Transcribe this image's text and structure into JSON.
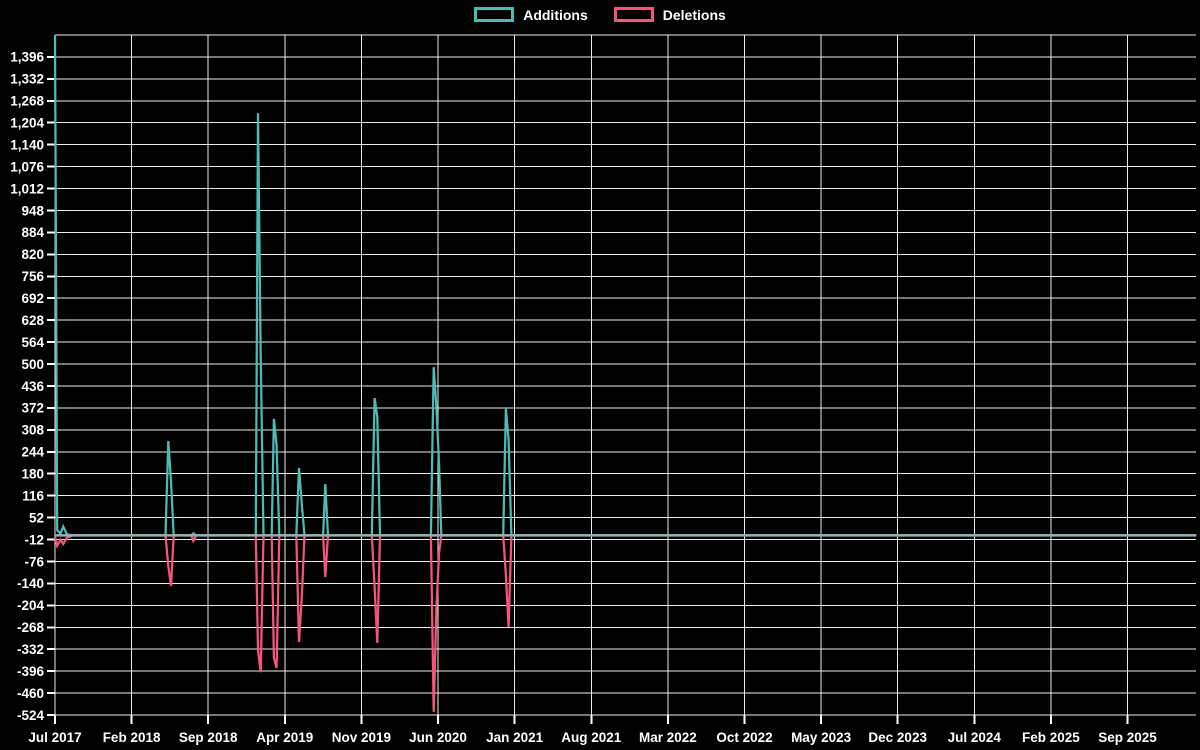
{
  "legend": {
    "position": "top-center",
    "items": [
      {
        "label": "Additions",
        "color": "#4dbbb1"
      },
      {
        "label": "Deletions",
        "color": "#f8537c"
      }
    ]
  },
  "colors": {
    "background": "#000000",
    "gridline": "#ffffff",
    "tick_text": "#ffffff",
    "additions": "#4dbbb1",
    "deletions": "#f8537c",
    "zero_baseline_overlap": "#8fb3b5"
  },
  "chart_data": {
    "type": "line",
    "title": "",
    "xlabel": "",
    "ylabel": "",
    "grid": true,
    "legend_position": "top",
    "x_unit": "months since Jul 2017",
    "x_domain": [
      0,
      104.3
    ],
    "x_tick_month_step": 7,
    "x_tick_labels": [
      "Jul 2017",
      "Feb 2018",
      "Sep 2018",
      "Apr 2019",
      "Nov 2019",
      "Jun 2020",
      "Jan 2021",
      "Aug 2021",
      "Mar 2022",
      "Oct 2022",
      "May 2023",
      "Dec 2023",
      "Jul 2024",
      "Feb 2025",
      "Sep 2025"
    ],
    "y_axis": {
      "min": -524,
      "max_labeled": 1396,
      "max_gridline_unlabeled": 1460,
      "step": 64,
      "tick_labels": [
        "1,396",
        "1,332",
        "1,268",
        "1,204",
        "1,140",
        "1,076",
        "1,012",
        "948",
        "884",
        "820",
        "756",
        "692",
        "628",
        "564",
        "500",
        "436",
        "372",
        "308",
        "244",
        "180",
        "116",
        "52",
        "-12",
        "-76",
        "-140",
        "-204",
        "-268",
        "-332",
        "-396",
        "-460",
        "-524"
      ]
    },
    "clipped_note_value": 1460,
    "series": [
      {
        "name": "Additions",
        "color": "#4dbbb1",
        "points": [
          [
            0,
            1460
          ],
          [
            0.2,
            15
          ],
          [
            0.5,
            5
          ],
          [
            0.75,
            26
          ],
          [
            1.1,
            3
          ],
          [
            1.6,
            0
          ],
          [
            10.1,
            0
          ],
          [
            10.35,
            275
          ],
          [
            10.6,
            159
          ],
          [
            10.85,
            0
          ],
          [
            12.45,
            0
          ],
          [
            12.65,
            6
          ],
          [
            12.9,
            0
          ],
          [
            18.35,
            0
          ],
          [
            18.55,
            1232
          ],
          [
            18.8,
            526
          ],
          [
            19.05,
            0
          ],
          [
            19.8,
            0
          ],
          [
            20.0,
            340
          ],
          [
            20.25,
            264
          ],
          [
            20.5,
            0
          ],
          [
            22.05,
            0
          ],
          [
            22.3,
            197
          ],
          [
            22.55,
            90
          ],
          [
            22.8,
            0
          ],
          [
            24.5,
            0
          ],
          [
            24.7,
            150
          ],
          [
            24.95,
            0
          ],
          [
            28.95,
            0
          ],
          [
            29.2,
            401
          ],
          [
            29.45,
            346
          ],
          [
            29.7,
            0
          ],
          [
            34.35,
            0
          ],
          [
            34.6,
            491
          ],
          [
            34.85,
            375
          ],
          [
            35.1,
            205
          ],
          [
            35.3,
            0
          ],
          [
            40.95,
            0
          ],
          [
            41.2,
            369
          ],
          [
            41.45,
            278
          ],
          [
            41.7,
            0
          ],
          [
            104.3,
            0
          ]
        ]
      },
      {
        "name": "Deletions",
        "color": "#f8537c",
        "points": [
          [
            0,
            -4
          ],
          [
            0.2,
            -30
          ],
          [
            0.5,
            -12
          ],
          [
            0.75,
            -25
          ],
          [
            1.1,
            -6
          ],
          [
            1.6,
            0
          ],
          [
            10.1,
            0
          ],
          [
            10.35,
            -89
          ],
          [
            10.6,
            -148
          ],
          [
            10.85,
            0
          ],
          [
            12.45,
            0
          ],
          [
            12.65,
            -16
          ],
          [
            12.9,
            0
          ],
          [
            18.35,
            0
          ],
          [
            18.55,
            -334
          ],
          [
            18.8,
            -399
          ],
          [
            19.05,
            0
          ],
          [
            19.8,
            0
          ],
          [
            20.0,
            -358
          ],
          [
            20.25,
            -387
          ],
          [
            20.5,
            0
          ],
          [
            22.05,
            0
          ],
          [
            22.3,
            -311
          ],
          [
            22.55,
            -180
          ],
          [
            22.8,
            0
          ],
          [
            24.5,
            0
          ],
          [
            24.7,
            -121
          ],
          [
            24.95,
            0
          ],
          [
            28.95,
            0
          ],
          [
            29.2,
            -150
          ],
          [
            29.45,
            -314
          ],
          [
            29.7,
            0
          ],
          [
            34.35,
            0
          ],
          [
            34.6,
            -515
          ],
          [
            34.85,
            -212
          ],
          [
            35.1,
            -50
          ],
          [
            35.3,
            0
          ],
          [
            40.95,
            0
          ],
          [
            41.2,
            -116
          ],
          [
            41.45,
            -267
          ],
          [
            41.7,
            0
          ],
          [
            104.3,
            0
          ]
        ]
      }
    ]
  }
}
